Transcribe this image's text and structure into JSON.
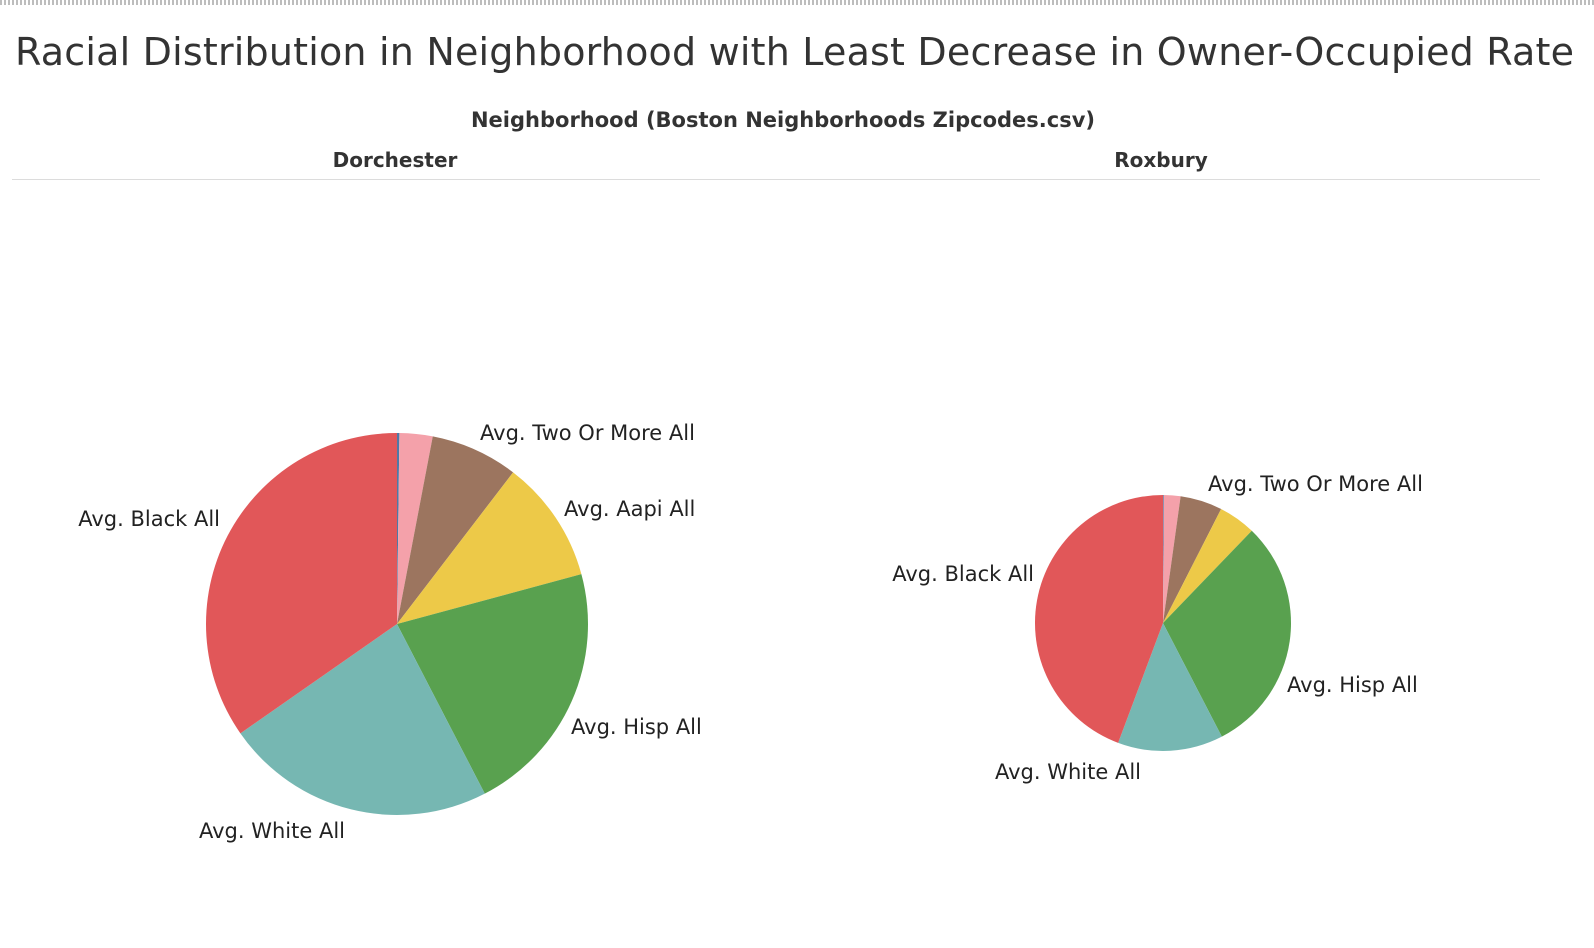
{
  "title": "Racial Distribution in Neighborhood with Least Decrease in Owner-Occupied Rate",
  "column_header": "Neighborhood (Boston Neighborhoods Zipcodes.csv)",
  "colors": {
    "black": "#e15759",
    "white": "#76b7b2",
    "hisp": "#59a14f",
    "aapi": "#edc948",
    "two_or_more": "#9c755f",
    "other": "#f4a1aa",
    "native": "#4e79a7"
  },
  "chart_data": [
    {
      "type": "pie",
      "neighborhood": "Dorchester",
      "slices": [
        {
          "key": "native",
          "label": "",
          "value": 0.2
        },
        {
          "key": "other",
          "label": "",
          "value": 2.8
        },
        {
          "key": "two_or_more",
          "label": "Avg. Two Or More All",
          "value": 7.4
        },
        {
          "key": "aapi",
          "label": "Avg. Aapi All",
          "value": 10.4
        },
        {
          "key": "hisp",
          "label": "Avg. Hisp All",
          "value": 21.6
        },
        {
          "key": "white",
          "label": "Avg. White All",
          "value": 22.9
        },
        {
          "key": "black",
          "label": "Avg. Black All",
          "value": 34.7
        }
      ]
    },
    {
      "type": "pie",
      "neighborhood": "Roxbury",
      "slices": [
        {
          "key": "native",
          "label": "",
          "value": 0.1
        },
        {
          "key": "other",
          "label": "",
          "value": 2.1
        },
        {
          "key": "two_or_more",
          "label": "Avg. Two Or More All",
          "value": 5.3
        },
        {
          "key": "aapi",
          "label": "Avg. Aapi All",
          "value": 4.7
        },
        {
          "key": "hisp",
          "label": "Avg. Hisp All",
          "value": 30.2
        },
        {
          "key": "white",
          "label": "Avg. White All",
          "value": 13.3
        },
        {
          "key": "black",
          "label": "Avg. Black All",
          "value": 44.3
        }
      ]
    }
  ]
}
